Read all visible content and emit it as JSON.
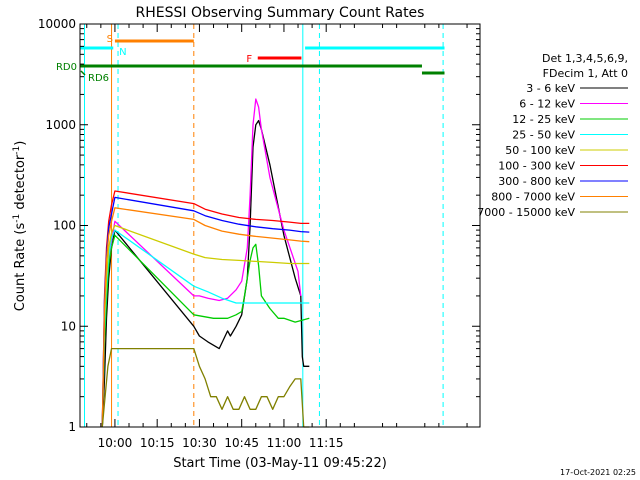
{
  "chart_data": {
    "type": "line",
    "title": "RHESSI Observing Summary Count Rates",
    "xlabel": "Start Time (03-May-11 09:45:22)",
    "ylabel_main": "Count Rate (s",
    "ylabel_sup1": "-1",
    "ylabel_mid": " detector",
    "ylabel_sup2": "-1",
    "ylabel_end": ")",
    "y_scale": "log",
    "ylim": [
      1,
      10000
    ],
    "xlim_minutes": [
      -12.4,
      129.6
    ],
    "x_ticks": [
      {
        "label": "10:00",
        "t": 0
      },
      {
        "label": "10:15",
        "t": 15
      },
      {
        "label": "10:30",
        "t": 30
      },
      {
        "label": "10:45",
        "t": 45
      },
      {
        "label": "11:00",
        "t": 60
      },
      {
        "label": "11:15",
        "t": 75
      }
    ],
    "y_ticks": [
      {
        "label": "1",
        "v": 1
      },
      {
        "label": "10",
        "v": 10
      },
      {
        "label": "100",
        "v": 100
      },
      {
        "label": "1000",
        "v": 1000
      },
      {
        "label": "10000",
        "v": 10000
      }
    ],
    "legend_header": [
      "Det 1,3,4,5,6,9,",
      "FDecim 1, Att 0"
    ],
    "series": [
      {
        "name": "3 - 6 keV",
        "color": "#000000",
        "x": [
          -4.5,
          -3.7,
          -3,
          -2.2,
          -1.2,
          0,
          28,
          30,
          33,
          37,
          40,
          41,
          43,
          45,
          47,
          48,
          49,
          50,
          51,
          52,
          55,
          60,
          64,
          66,
          66.5,
          67,
          69
        ],
        "y": [
          1,
          3,
          12,
          30,
          60,
          90,
          10,
          8,
          7,
          6,
          9,
          8,
          10,
          13,
          30,
          100,
          600,
          1000,
          1100,
          900,
          400,
          80,
          30,
          20,
          5,
          4,
          4
        ]
      },
      {
        "name": "6 - 12 keV",
        "color": "#ff00ff",
        "x": [
          -4.5,
          -3.7,
          -3,
          -2.2,
          -1.2,
          0,
          28,
          30,
          33,
          37,
          40,
          43,
          45,
          47,
          48,
          49,
          50,
          51,
          52,
          55,
          60,
          65,
          66
        ],
        "y": [
          1,
          8,
          20,
          45,
          70,
          110,
          20,
          20,
          19,
          18,
          19,
          23,
          28,
          60,
          200,
          1000,
          1800,
          1500,
          900,
          300,
          90,
          35,
          20
        ]
      },
      {
        "name": "12 - 25 keV",
        "color": "#00cc00",
        "x": [
          -4.5,
          -3.7,
          -3,
          -2.2,
          -1.2,
          0,
          28,
          35,
          40,
          43,
          45,
          46,
          48,
          49,
          50,
          51,
          52,
          55,
          58,
          60,
          64,
          69
        ],
        "y": [
          1,
          7,
          18,
          40,
          60,
          80,
          13,
          12,
          12,
          13,
          14,
          20,
          45,
          60,
          65,
          40,
          20,
          15,
          12,
          12,
          11,
          12
        ]
      },
      {
        "name": "25 - 50 keV",
        "color": "#00ffff",
        "x": [
          -4.5,
          -3.7,
          -3,
          -2.2,
          -1.2,
          0,
          28,
          33,
          38,
          43,
          48,
          53,
          58,
          63,
          66,
          69
        ],
        "y": [
          1,
          10,
          25,
          50,
          75,
          90,
          25,
          22,
          19,
          17,
          17,
          17,
          17,
          17,
          17,
          17
        ]
      },
      {
        "name": "50 - 100 keV",
        "color": "#cccc00",
        "x": [
          -4.5,
          -3.7,
          -3,
          -2.2,
          -1.2,
          0,
          28,
          32,
          38,
          44,
          50,
          56,
          62,
          66,
          69
        ],
        "y": [
          1,
          12,
          30,
          60,
          85,
          100,
          52,
          48,
          46,
          45,
          44,
          43,
          42,
          42,
          42
        ]
      },
      {
        "name": "100 - 300 keV",
        "color": "#ff0000",
        "x": [
          -4.5,
          -3.7,
          -3,
          -2.2,
          -1.2,
          0,
          28,
          32,
          38,
          44,
          50,
          56,
          62,
          66,
          69
        ],
        "y": [
          1,
          20,
          60,
          110,
          160,
          220,
          165,
          145,
          130,
          120,
          115,
          112,
          108,
          105,
          105
        ]
      },
      {
        "name": "300 - 800 keV",
        "color": "#0000ff",
        "x": [
          -4.5,
          -3.7,
          -3,
          -2.2,
          -1.2,
          0,
          28,
          32,
          38,
          44,
          50,
          56,
          62,
          66,
          69
        ],
        "y": [
          1,
          18,
          50,
          95,
          130,
          190,
          140,
          125,
          112,
          103,
          97,
          93,
          90,
          87,
          86
        ]
      },
      {
        "name": "800 - 7000 keV",
        "color": "#ff8000",
        "x": [
          -4.5,
          -3.7,
          -3,
          -2.2,
          -1.2,
          0,
          28,
          32,
          38,
          44,
          50,
          56,
          62,
          66,
          69
        ],
        "y": [
          1,
          15,
          45,
          80,
          110,
          150,
          115,
          100,
          88,
          82,
          78,
          75,
          72,
          70,
          69
        ]
      },
      {
        "name": "7000 - 15000 keV",
        "color": "#808000",
        "x": [
          -4.5,
          -3.5,
          -2.5,
          -1.2,
          28,
          30,
          32,
          34,
          36,
          38,
          40,
          42,
          44,
          46,
          48,
          50,
          52,
          54,
          56,
          58,
          60,
          62,
          64,
          66,
          67,
          69
        ],
        "y": [
          1,
          2,
          4,
          6,
          6,
          4,
          3,
          2,
          2,
          1.5,
          2,
          1.5,
          1.5,
          2,
          1.5,
          1.5,
          2,
          2,
          1.5,
          2,
          2,
          2.5,
          3,
          3,
          1,
          1
        ]
      }
    ],
    "flags": [
      {
        "label": "S",
        "color": "#ff8000",
        "label_t": -1.8,
        "t1": 0,
        "t2": 28,
        "level": 2
      },
      {
        "label": "N",
        "color": "#00ffff",
        "label_t": 1.5,
        "t1": -12.4,
        "t2": -0.6,
        "level": 3
      },
      {
        "label": "F",
        "color": "#ff0000",
        "label_t": 47.7,
        "t1": 50.7,
        "t2": 66.2,
        "level": 1
      },
      {
        "label": "RD0",
        "color": "#008000",
        "label_t": null,
        "t1": -12.4,
        "t2": 109,
        "level": 4
      },
      {
        "label": "RD6",
        "color": "#008000",
        "label_t": null,
        "t1": 109,
        "t2": 117,
        "level": 5
      }
    ],
    "extra_segments": [
      {
        "color": "#00ffff",
        "t1": 67.5,
        "t2": 117,
        "level": 3
      }
    ],
    "vlines": [
      {
        "t": -10.8,
        "color": "#00ffff",
        "dash": false
      },
      {
        "t": -1.2,
        "color": "#ff8000",
        "dash": false
      },
      {
        "t": 1.1,
        "color": "#00ffff",
        "dash": true
      },
      {
        "t": 28,
        "color": "#ff8000",
        "dash": true
      },
      {
        "t": 66.7,
        "color": "#00ffff",
        "dash": false
      },
      {
        "t": 72.6,
        "color": "#00ffff",
        "dash": true
      },
      {
        "t": 116.5,
        "color": "#00ffff",
        "dash": true
      }
    ],
    "timestamp": "17-Oct-2021 02:25"
  }
}
